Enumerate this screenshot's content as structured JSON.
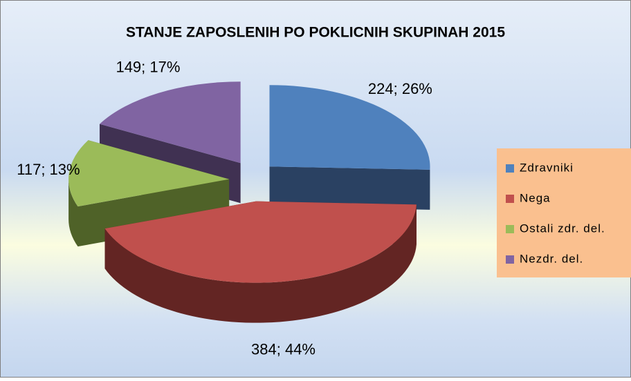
{
  "chart_data": {
    "type": "pie3d",
    "title": "STANJE ZAPOSLENIH PO POKLICNIH SKUPINAH 2015",
    "categories": [
      "Zdravniki",
      "Nega",
      "Ostali zdr. del.",
      "Nezdr. del."
    ],
    "values": [
      224,
      384,
      117,
      149
    ],
    "value_labels": [
      "224; 26%",
      "384; 44%",
      "117; 13%",
      "149; 17%"
    ],
    "colors": [
      "#4f81bd",
      "#c0504d",
      "#9bbb59",
      "#8064a2"
    ],
    "side_colors": [
      "#2a4162",
      "#632523",
      "#4f6228",
      "#403152"
    ],
    "legend": "right"
  }
}
